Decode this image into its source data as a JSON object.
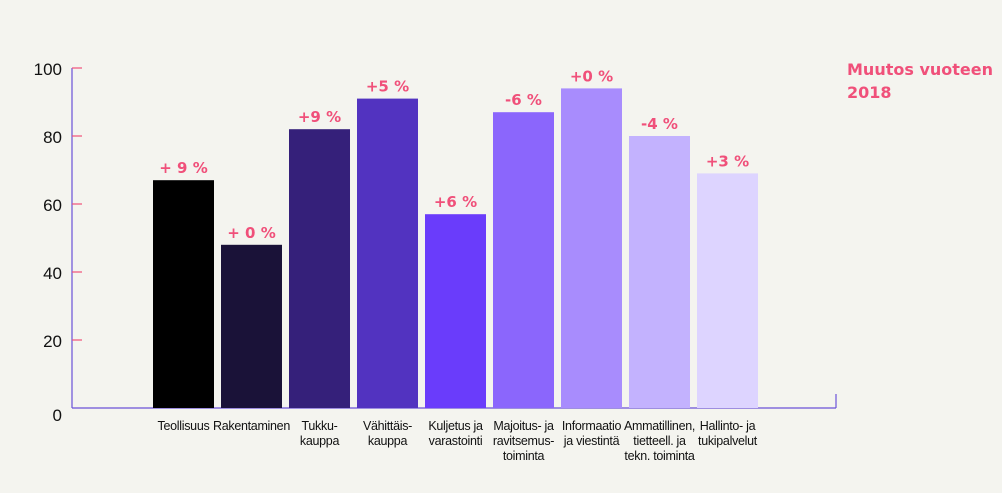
{
  "chart_data": {
    "type": "bar",
    "ylim": [
      0,
      100
    ],
    "yticks": [
      0,
      20,
      40,
      60,
      80,
      100
    ],
    "grid": false,
    "legend_title": "Muutos vuoteen 2018",
    "categories": [
      "Teollisuus",
      "Rakentaminen",
      "Tukku- kauppa",
      "Vähittäis- kauppa",
      "Kuljetus ja varastointi",
      "Majoitus- ja ravitsemus- toiminta",
      "Informaatio ja viestintä",
      "Ammatillinen, tietteell. ja tekn. toiminta",
      "Hallinto- ja tukipalvelut"
    ],
    "category_lines": [
      [
        "Teollisuus"
      ],
      [
        "Rakentaminen"
      ],
      [
        "Tukku-",
        "kauppa"
      ],
      [
        "Vähittäis-",
        "kauppa"
      ],
      [
        "Kuljetus ja",
        "varastointi"
      ],
      [
        "Majoitus- ja",
        "ravitsemus-",
        "toiminta"
      ],
      [
        "Informaatio",
        "ja viestintä"
      ],
      [
        "Ammatillinen,",
        "tietteell. ja",
        "tekn. toiminta"
      ],
      [
        "Hallinto- ja",
        "tukipalvelut"
      ]
    ],
    "values": [
      67,
      48,
      82,
      91,
      57,
      87,
      94,
      80,
      69
    ],
    "changes": [
      "+ 9 %",
      "+ 0 %",
      "+9 %",
      "+5 %",
      "+6 %",
      "-6 %",
      "+0 %",
      "-4 %",
      "+3 %"
    ],
    "bar_colors": [
      "#000000",
      "#1a1238",
      "#35207a",
      "#5233c0",
      "#6a3cfb",
      "#8b66fc",
      "#a88cfd",
      "#c3b2fe",
      "#ddd4ff"
    ],
    "label_color": "#f0507a",
    "axis_color": "#6a52d8",
    "tick_color": "#f0507a"
  }
}
